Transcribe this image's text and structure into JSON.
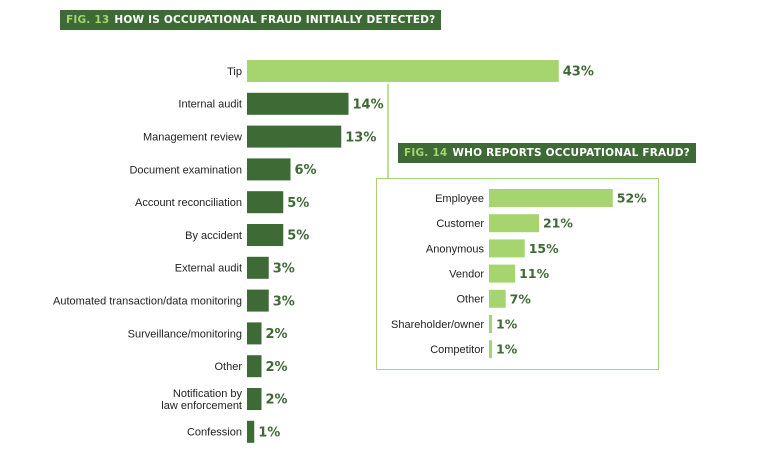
{
  "charts": {
    "main": {
      "fig": "FIG. 13",
      "title": "HOW IS OCCUPATIONAL FRAUD INITIALLY DETECTED?"
    },
    "inset": {
      "fig": "FIG. 14",
      "title": "WHO REPORTS OCCUPATIONAL FRAUD?"
    }
  },
  "colors": {
    "dark_bar": "#3e6a35",
    "highlight_bar": "#a6d46e",
    "label_value": "#3e6a35",
    "text": "#222222",
    "border": "#a6d46e"
  },
  "chart_data": [
    {
      "type": "bar",
      "orientation": "horizontal",
      "title": "FIG. 13 HOW IS OCCUPATIONAL FRAUD INITIALLY DETECTED?",
      "categories": [
        "Tip",
        "Internal audit",
        "Management review",
        "Document examination",
        "Account reconciliation",
        "By accident",
        "External audit",
        "Automated transaction/data monitoring",
        "Surveillance/monitoring",
        "Other",
        "Notification by\nlaw enforcement",
        "Confession"
      ],
      "values": [
        43,
        14,
        13,
        6,
        5,
        5,
        3,
        3,
        2,
        2,
        2,
        1
      ],
      "value_labels": [
        "43%",
        "14%",
        "13%",
        "6%",
        "5%",
        "5%",
        "3%",
        "3%",
        "2%",
        "2%",
        "2%",
        "1%"
      ],
      "highlight": [
        "Tip"
      ],
      "unit": "%",
      "grid": false
    },
    {
      "type": "bar",
      "orientation": "horizontal",
      "title": "FIG. 14 WHO REPORTS OCCUPATIONAL FRAUD?",
      "categories": [
        "Employee",
        "Customer",
        "Anonymous",
        "Vendor",
        "Other",
        "Shareholder/owner",
        "Competitor"
      ],
      "values": [
        52,
        21,
        15,
        11,
        7,
        1,
        1
      ],
      "value_labels": [
        "52%",
        "21%",
        "15%",
        "11%",
        "7%",
        "1%",
        "1%"
      ],
      "unit": "%",
      "grid": false
    }
  ]
}
